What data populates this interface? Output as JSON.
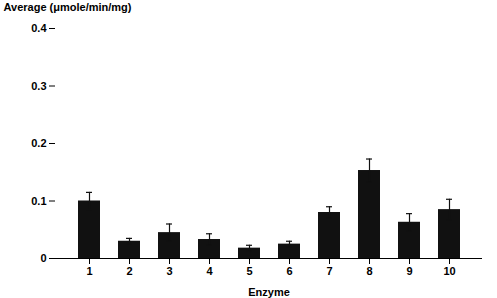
{
  "chart_data": {
    "type": "bar",
    "categories": [
      "1",
      "2",
      "3",
      "4",
      "5",
      "6",
      "7",
      "8",
      "9",
      "10"
    ],
    "values": [
      0.1,
      0.03,
      0.045,
      0.033,
      0.018,
      0.025,
      0.08,
      0.153,
      0.063,
      0.085
    ],
    "errors": [
      0.015,
      0.005,
      0.015,
      0.01,
      0.005,
      0.005,
      0.01,
      0.02,
      0.015,
      0.018
    ],
    "color": "#111111",
    "xlabel": "Enzyme",
    "ylabel": "Average (μmole/min/mg)",
    "ylim": [
      0,
      0.4
    ],
    "yticks": [
      0,
      0.1,
      0.2,
      0.3,
      0.4
    ]
  }
}
